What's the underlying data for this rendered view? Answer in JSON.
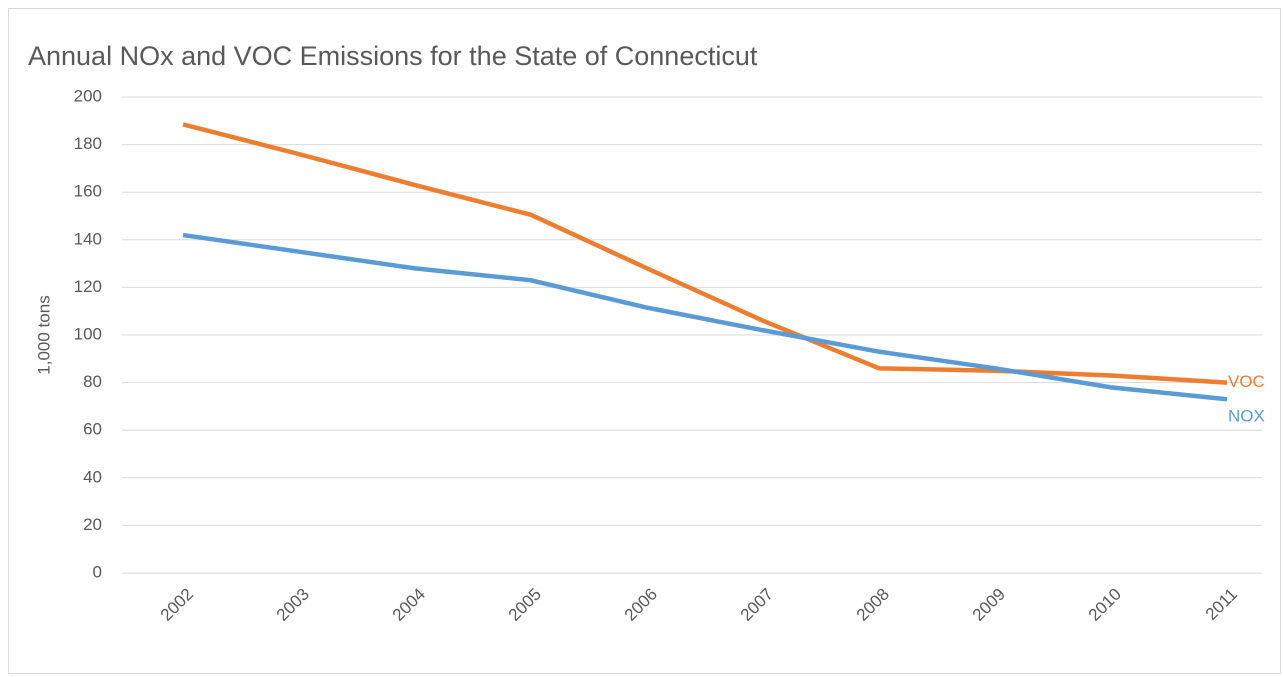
{
  "chart_data": {
    "type": "line",
    "title": "Annual NOx and VOC Emissions for the State of Connecticut",
    "y_label": "1,000 tons",
    "categories": [
      "2002",
      "2003",
      "2004",
      "2005",
      "2006",
      "2007",
      "2008",
      "2009",
      "2010",
      "2011"
    ],
    "series": [
      {
        "name": "VOC",
        "color": "#ed7d31",
        "values": [
          188.5,
          176,
          163,
          150.5,
          128,
          106,
          86,
          85,
          83,
          80
        ]
      },
      {
        "name": "NOX",
        "color": "#5b9bd5",
        "values": [
          142,
          135,
          128,
          123,
          111.5,
          102,
          93,
          86,
          78,
          73
        ]
      }
    ],
    "ylim": [
      0,
      200
    ],
    "yticks": [
      0,
      20,
      40,
      60,
      80,
      100,
      120,
      140,
      160,
      180,
      200
    ],
    "grid": true
  }
}
